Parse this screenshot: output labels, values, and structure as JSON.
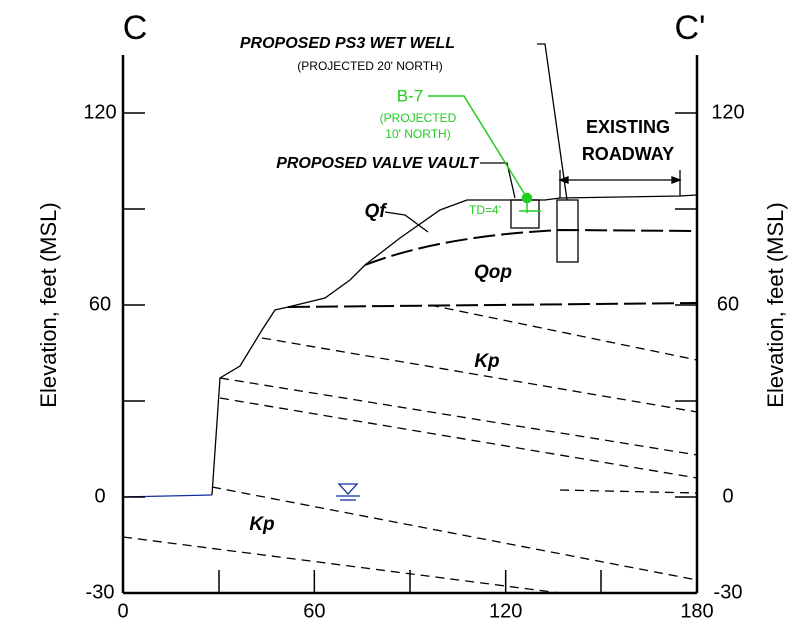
{
  "header": {
    "left_section": "C",
    "right_section": "C'"
  },
  "axes": {
    "y_label": "Elevation, feet (MSL)",
    "x_ticks": [
      0,
      60,
      120,
      180
    ],
    "y_ticks": [
      -30,
      0,
      60,
      120
    ]
  },
  "annotations": {
    "wet_well": "PROPOSED PS3 WET WELL",
    "wet_well_note": "(PROJECTED 20' NORTH)",
    "boring": "B-7",
    "boring_note_1": "(PROJECTED",
    "boring_note_2": "10' NORTH)",
    "roadway_1": "EXISTING",
    "roadway_2": "ROADWAY",
    "valve_vault": "PROPOSED VALVE VAULT",
    "total_depth": "TD=4'"
  },
  "units": {
    "fill": "Qf",
    "old_paralic": "Qop",
    "formation_upper": "Kp",
    "formation_lower": "Kp"
  }
}
